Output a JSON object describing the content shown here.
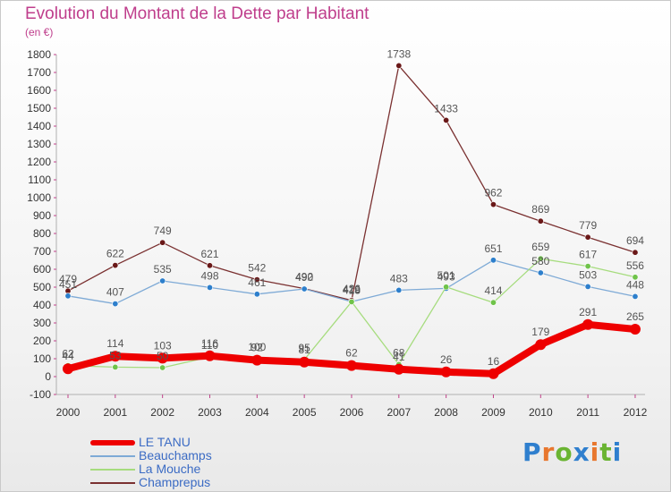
{
  "title": "Evolution du Montant de la Dette par Habitant",
  "unit": "(en €)",
  "brand": {
    "text": "Proxiti",
    "letter_colors": [
      "#2f7fce",
      "#e8772e",
      "#6ab432",
      "#2f7fce",
      "#e8772e",
      "#6ab432",
      "#2f7fce"
    ]
  },
  "chart_data": {
    "type": "line",
    "x": [
      "2000",
      "2001",
      "2002",
      "2003",
      "2004",
      "2005",
      "2006",
      "2007",
      "2008",
      "2009",
      "2010",
      "2011",
      "2012"
    ],
    "ylim": [
      -100,
      1800
    ],
    "yticks": [
      "-100",
      "0",
      "100",
      "200",
      "300",
      "400",
      "500",
      "600",
      "700",
      "800",
      "900",
      "1000",
      "1100",
      "1200",
      "1300",
      "1400",
      "1500",
      "1600",
      "1700",
      "1800"
    ],
    "grid": false,
    "legend_position": "bottom-left",
    "series": [
      {
        "name": "LE TANU",
        "color": "#ee0000",
        "marker_color": "#ee0000",
        "label_color": "#555555",
        "values": [
          44,
          114,
          103,
          116,
          92,
          81,
          62,
          41,
          26,
          16,
          179,
          291,
          265
        ],
        "labels": [
          "44",
          "114",
          "103",
          "116",
          "92",
          "81",
          "62",
          "41",
          "26",
          "16",
          "179",
          "291",
          "265"
        ]
      },
      {
        "name": "Beauchamps",
        "color": "#7eaad6",
        "marker_color": "#2d7fcc",
        "label_color": "#555555",
        "values": [
          451,
          407,
          535,
          498,
          461,
          490,
          419,
          483,
          493,
          651,
          580,
          503,
          448
        ],
        "labels": [
          "451",
          "407",
          "535",
          "498",
          "461",
          "490",
          "419",
          "483",
          "493",
          "651",
          "580",
          "503",
          "448"
        ]
      },
      {
        "name": "La Mouche",
        "color": "#a6dc7e",
        "marker_color": "#6fc34a",
        "label_color": "#555555",
        "values": [
          62,
          53,
          50,
          110,
          100,
          95,
          418,
          68,
          501,
          414,
          659,
          617,
          556
        ],
        "labels": [
          "62",
          "53",
          "50",
          "110",
          "100",
          "95",
          "418",
          "68",
          "501",
          "414",
          "659",
          "617",
          "556"
        ]
      },
      {
        "name": "Champrepus",
        "color": "#7a3030",
        "marker_color": "#6a1818",
        "label_color": "#555555",
        "values": [
          479,
          622,
          749,
          621,
          542,
          492,
          426,
          1738,
          1433,
          962,
          869,
          779,
          694
        ],
        "labels": [
          "479",
          "622",
          "749",
          "621",
          "542",
          "492",
          "426",
          "1738",
          "1433",
          "962",
          "869",
          "779",
          "694"
        ]
      }
    ]
  }
}
